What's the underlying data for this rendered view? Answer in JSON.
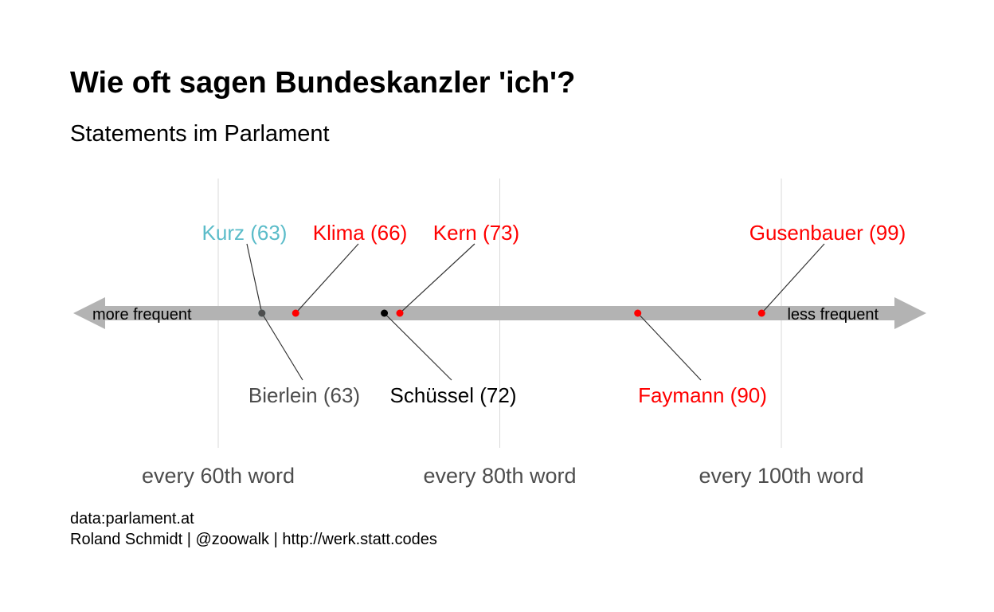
{
  "title": "Wie oft sagen Bundeskanzler 'ich'?",
  "subtitle": "Statements im Parlament",
  "caption_line1": "data:parlament.at",
  "caption_line2": "Roland Schmidt | @zoowalk | http://werk.statt.codes",
  "arrow": {
    "left_label": "more frequent",
    "right_label": "less frequent",
    "color": "#b3b3b3"
  },
  "colors": {
    "red": "#ff0000",
    "black": "#000000",
    "turquoise": "#5bbcc9",
    "grey": "#4d4d4d"
  },
  "chart_data": {
    "type": "scatter",
    "x_axis": {
      "ticks": [
        60,
        80,
        100
      ],
      "tick_labels": [
        "every 60th word",
        "every 80th word",
        "every 100th word"
      ],
      "xlim": [
        50,
        110
      ],
      "grid": true
    },
    "points": [
      {
        "name": "Kurz",
        "label": "Kurz (63)",
        "value": 63,
        "value_exact": 63.1,
        "color": "#5bbcc9",
        "label_position": "above"
      },
      {
        "name": "Bierlein",
        "label": "Bierlein (63)",
        "value": 63,
        "value_exact": 63.1,
        "color": "#4d4d4d",
        "label_position": "below"
      },
      {
        "name": "Klima",
        "label": "Klima (66)",
        "value": 66,
        "value_exact": 65.5,
        "color": "#ff0000",
        "label_position": "above"
      },
      {
        "name": "Schüssel",
        "label": "Schüssel (72)",
        "value": 72,
        "value_exact": 71.8,
        "color": "#000000",
        "label_position": "below"
      },
      {
        "name": "Kern",
        "label": "Kern (73)",
        "value": 73,
        "value_exact": 72.9,
        "color": "#ff0000",
        "label_position": "above"
      },
      {
        "name": "Faymann",
        "label": "Faymann (90)",
        "value": 90,
        "value_exact": 89.8,
        "color": "#ff0000",
        "label_position": "below"
      },
      {
        "name": "Gusenbauer",
        "label": "Gusenbauer (99)",
        "value": 99,
        "value_exact": 98.6,
        "color": "#ff0000",
        "label_position": "above"
      }
    ]
  }
}
